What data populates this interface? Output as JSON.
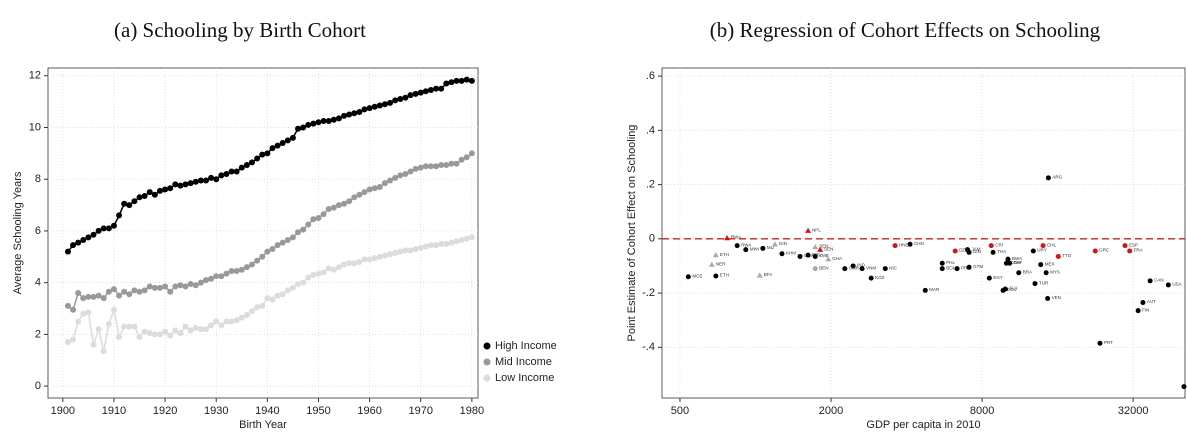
{
  "chart_data": [
    {
      "type": "line",
      "title": "(a) Schooling by Birth Cohort",
      "x_label": "Birth Year",
      "y_label": "Average Schooling Years",
      "xlim": [
        1897.1,
        1981.2
      ],
      "ylim": [
        -0.46,
        12.3
      ],
      "xticks": [
        1900,
        1910,
        1920,
        1930,
        1940,
        1950,
        1960,
        1970,
        1980
      ],
      "yticks": [
        0,
        2,
        4,
        6,
        8,
        10,
        12
      ],
      "grid": true,
      "legend_position": "lower-right",
      "x": [
        1901,
        1902,
        1903,
        1904,
        1905,
        1906,
        1907,
        1908,
        1909,
        1910,
        1911,
        1912,
        1913,
        1914,
        1915,
        1916,
        1917,
        1918,
        1919,
        1920,
        1921,
        1922,
        1923,
        1924,
        1925,
        1926,
        1927,
        1928,
        1929,
        1930,
        1931,
        1932,
        1933,
        1934,
        1935,
        1936,
        1937,
        1938,
        1939,
        1940,
        1941,
        1942,
        1943,
        1944,
        1945,
        1946,
        1947,
        1948,
        1949,
        1950,
        1951,
        1952,
        1953,
        1954,
        1955,
        1956,
        1957,
        1958,
        1959,
        1960,
        1961,
        1962,
        1963,
        1964,
        1965,
        1966,
        1967,
        1968,
        1969,
        1970,
        1971,
        1972,
        1973,
        1974,
        1975,
        1976,
        1977,
        1978,
        1979,
        1980
      ],
      "series": [
        {
          "name": "High Income",
          "color": "#000000",
          "values": [
            5.2,
            5.45,
            5.55,
            5.65,
            5.75,
            5.85,
            6.0,
            6.1,
            6.1,
            6.2,
            6.6,
            7.05,
            7.0,
            7.15,
            7.3,
            7.35,
            7.5,
            7.4,
            7.55,
            7.6,
            7.65,
            7.8,
            7.75,
            7.8,
            7.85,
            7.9,
            7.95,
            7.95,
            8.05,
            8.0,
            8.15,
            8.2,
            8.3,
            8.3,
            8.45,
            8.55,
            8.65,
            8.8,
            8.95,
            9.0,
            9.2,
            9.3,
            9.4,
            9.5,
            9.6,
            9.95,
            10.0,
            10.1,
            10.15,
            10.2,
            10.25,
            10.25,
            10.3,
            10.35,
            10.45,
            10.5,
            10.55,
            10.6,
            10.7,
            10.75,
            10.8,
            10.85,
            10.9,
            10.95,
            11.05,
            11.1,
            11.15,
            11.25,
            11.3,
            11.35,
            11.4,
            11.45,
            11.5,
            11.5,
            11.7,
            11.75,
            11.8,
            11.8,
            11.85,
            11.8
          ]
        },
        {
          "name": "Mid Income",
          "color": "#999999",
          "values": [
            3.1,
            2.95,
            3.6,
            3.4,
            3.45,
            3.45,
            3.5,
            3.4,
            3.65,
            3.75,
            3.5,
            3.65,
            3.55,
            3.7,
            3.65,
            3.7,
            3.85,
            3.8,
            3.8,
            3.85,
            3.65,
            3.85,
            3.9,
            3.85,
            3.95,
            3.9,
            4.0,
            4.1,
            4.15,
            4.25,
            4.25,
            4.35,
            4.45,
            4.45,
            4.5,
            4.6,
            4.7,
            4.85,
            5.0,
            5.2,
            5.3,
            5.45,
            5.55,
            5.65,
            5.75,
            5.95,
            6.05,
            6.25,
            6.45,
            6.5,
            6.65,
            6.85,
            6.9,
            7.0,
            7.05,
            7.15,
            7.3,
            7.4,
            7.5,
            7.6,
            7.65,
            7.7,
            7.85,
            7.95,
            8.05,
            8.15,
            8.2,
            8.3,
            8.4,
            8.45,
            8.5,
            8.5,
            8.5,
            8.55,
            8.55,
            8.6,
            8.6,
            8.75,
            8.85,
            9.0
          ]
        },
        {
          "name": "Low Income",
          "color": "#dcdcdc",
          "values": [
            1.7,
            1.8,
            2.5,
            2.8,
            2.85,
            1.6,
            2.2,
            1.35,
            2.4,
            2.95,
            1.9,
            2.3,
            2.3,
            2.3,
            1.9,
            2.1,
            2.05,
            2.0,
            2.0,
            2.1,
            1.95,
            2.15,
            2.05,
            2.3,
            2.15,
            2.25,
            2.2,
            2.2,
            2.35,
            2.5,
            2.35,
            2.5,
            2.5,
            2.55,
            2.65,
            2.75,
            2.9,
            3.05,
            3.1,
            3.4,
            3.35,
            3.5,
            3.55,
            3.7,
            3.8,
            3.95,
            4.0,
            4.2,
            4.3,
            4.35,
            4.4,
            4.55,
            4.5,
            4.6,
            4.7,
            4.75,
            4.75,
            4.8,
            4.9,
            4.9,
            4.95,
            5.0,
            5.05,
            5.1,
            5.15,
            5.2,
            5.25,
            5.25,
            5.3,
            5.35,
            5.4,
            5.45,
            5.45,
            5.5,
            5.5,
            5.55,
            5.6,
            5.65,
            5.7,
            5.75
          ]
        }
      ]
    },
    {
      "type": "scatter",
      "title": "(b) Regression of Cohort Effects on Schooling",
      "x_label": "GDP per capita in 2010",
      "y_label": "Point Estimate of Cohort Effect on Schooling",
      "xlog": true,
      "xlim": [
        424,
        51500
      ],
      "ylim": [
        -0.587,
        0.63
      ],
      "xticks": [
        500,
        2000,
        8000,
        32000
      ],
      "yticks": [
        {
          "value": 0.6,
          "label": ".6"
        },
        {
          "value": 0.4,
          "label": ".4"
        },
        {
          "value": 0.2,
          "label": ".2"
        },
        0,
        {
          "value": -0.2,
          "label": "-.2"
        },
        {
          "value": -0.4,
          "label": "-.4"
        }
      ],
      "grid": true,
      "hline": 0,
      "hline_color": "#cc2222",
      "series": [
        {
          "color": "#000000",
          "marker": "circle",
          "labels": [
            "MOZ",
            "ETH",
            "RWA",
            "MWI",
            "MLI",
            "KHM",
            "UGA",
            "NPL",
            "ZMB",
            "IND",
            "CMR",
            "VNM",
            "KGZ",
            "NIC",
            "CHN",
            "MAR",
            "PHL",
            "BOL",
            "PRY",
            "GTM",
            "IDN",
            "JAM",
            "EGY",
            "THA",
            "ECU",
            "SLV",
            "BWA",
            "DOM",
            "ZAF",
            "BRA",
            "URY",
            "TUR",
            "MEX",
            "MYS",
            "VEN",
            "ARG",
            "PRT",
            "FIN",
            "AUT",
            "CAN",
            "USA",
            null
          ],
          "x": [
            540,
            695,
            845,
            915,
            1070,
            1275,
            1505,
            1620,
            1730,
            2450,
            2270,
            2660,
            2890,
            3290,
            4130,
            4750,
            5550,
            5550,
            6360,
            7100,
            7100,
            7000,
            8550,
            8850,
            9700,
            9900,
            10150,
            10000,
            10300,
            11200,
            12800,
            13000,
            13700,
            14400,
            14600,
            14700,
            23600,
            33500,
            35000,
            37400,
            44200,
            51000
          ],
          "values": [
            -0.14,
            -0.137,
            -0.025,
            -0.04,
            -0.035,
            -0.055,
            -0.065,
            -0.06,
            -0.065,
            -0.1,
            -0.11,
            -0.11,
            -0.145,
            -0.11,
            -0.02,
            -0.19,
            -0.09,
            -0.11,
            -0.11,
            -0.105,
            -0.05,
            -0.04,
            -0.145,
            -0.05,
            -0.19,
            -0.185,
            -0.075,
            -0.09,
            -0.09,
            -0.125,
            -0.045,
            -0.165,
            -0.095,
            -0.125,
            -0.22,
            0.225,
            -0.385,
            -0.265,
            -0.235,
            -0.155,
            -0.17,
            -0.545
          ]
        },
        {
          "color": "#dd1111",
          "marker": "circle",
          "labels": [
            "HND",
            "DZA",
            "CRI",
            "CHL",
            "TTO",
            "GRC",
            "ESP",
            "FRA"
          ],
          "x": [
            3600,
            6250,
            8700,
            14000,
            16100,
            22600,
            29700,
            31000
          ],
          "values": [
            -0.025,
            -0.045,
            -0.025,
            -0.025,
            -0.065,
            -0.045,
            -0.025,
            -0.045
          ]
        },
        {
          "color": "#dd1111",
          "marker": "triangle",
          "labels": [
            "RWA",
            "NPL",
            "SEN"
          ],
          "x": [
            770,
            1620,
            1810
          ],
          "values": [
            0.003,
            0.03,
            -0.04
          ]
        },
        {
          "color": "#aaaaaa",
          "marker": "triangle",
          "labels": [
            "ETH",
            "NER",
            "BFA",
            "GIN",
            "GHA",
            "SEN"
          ],
          "x": [
            695,
            670,
            1040,
            1195,
            1950,
            1730
          ],
          "values": [
            -0.06,
            -0.095,
            -0.135,
            -0.02,
            -0.075,
            -0.03
          ]
        },
        {
          "color": "#aaaaaa",
          "marker": "circle",
          "labels": [
            "BEN"
          ],
          "x": [
            1730
          ],
          "values": [
            -0.11
          ]
        }
      ]
    }
  ]
}
